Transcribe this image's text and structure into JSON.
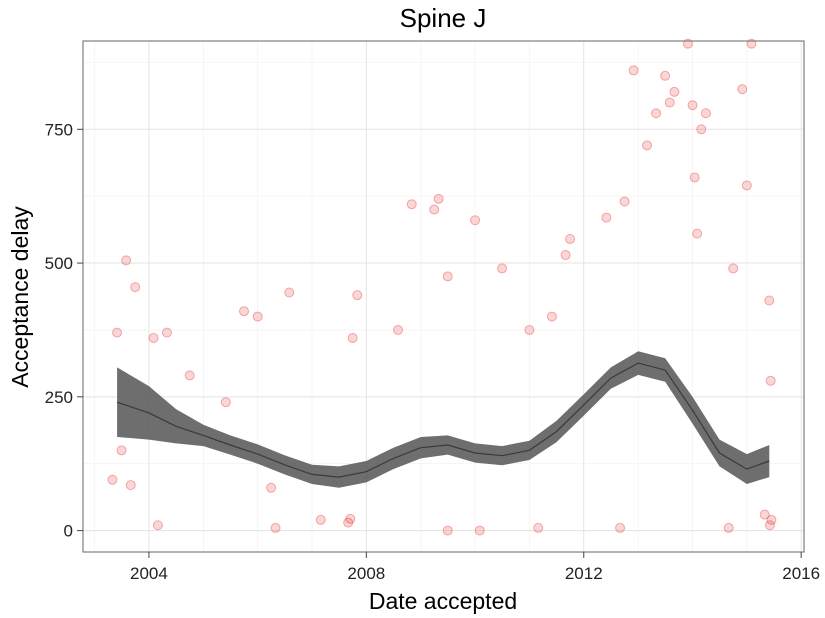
{
  "chart_data": {
    "type": "scatter",
    "title": "Spine J",
    "xlabel": "Date accepted",
    "ylabel": "Acceptance delay",
    "xlim": [
      "2002-10-15",
      "2016-01-20"
    ],
    "ylim": [
      -40,
      915
    ],
    "x_ticks": [
      "2004",
      "2008",
      "2012",
      "2016"
    ],
    "y_ticks": [
      0,
      250,
      500,
      750
    ],
    "grid": true,
    "point_color": "#E41A1C",
    "smooth_color": "#555555",
    "points": [
      {
        "x": "2003-06-01",
        "y": 370
      },
      {
        "x": "2003-08-01",
        "y": 505
      },
      {
        "x": "2003-10-01",
        "y": 455
      },
      {
        "x": "2003-05-01",
        "y": 95
      },
      {
        "x": "2003-09-01",
        "y": 85
      },
      {
        "x": "2004-03-01",
        "y": 10
      },
      {
        "x": "2004-05-01",
        "y": 370
      },
      {
        "x": "2004-02-01",
        "y": 360
      },
      {
        "x": "2003-07-01",
        "y": 150
      },
      {
        "x": "2004-10-01",
        "y": 290
      },
      {
        "x": "2005-06-01",
        "y": 240
      },
      {
        "x": "2005-10-01",
        "y": 410
      },
      {
        "x": "2006-01-01",
        "y": 400
      },
      {
        "x": "2006-08-01",
        "y": 445
      },
      {
        "x": "2006-04-01",
        "y": 80
      },
      {
        "x": "2006-05-01",
        "y": 5
      },
      {
        "x": "2007-03-01",
        "y": 20
      },
      {
        "x": "2007-09-01",
        "y": 15
      },
      {
        "x": "2007-09-15",
        "y": 22
      },
      {
        "x": "2007-10-01",
        "y": 360
      },
      {
        "x": "2007-11-01",
        "y": 440
      },
      {
        "x": "2008-08-01",
        "y": 375
      },
      {
        "x": "2008-11-01",
        "y": 610
      },
      {
        "x": "2009-05-01",
        "y": 620
      },
      {
        "x": "2009-04-01",
        "y": 600
      },
      {
        "x": "2009-07-01",
        "y": 475
      },
      {
        "x": "2010-01-01",
        "y": 580
      },
      {
        "x": "2010-07-01",
        "y": 490
      },
      {
        "x": "2011-01-01",
        "y": 375
      },
      {
        "x": "2011-06-01",
        "y": 400
      },
      {
        "x": "2011-09-01",
        "y": 515
      },
      {
        "x": "2011-10-01",
        "y": 545
      },
      {
        "x": "2012-06-01",
        "y": 585
      },
      {
        "x": "2012-10-01",
        "y": 615
      },
      {
        "x": "2012-12-01",
        "y": 860
      },
      {
        "x": "2013-03-01",
        "y": 720
      },
      {
        "x": "2013-05-01",
        "y": 780
      },
      {
        "x": "2013-07-01",
        "y": 850
      },
      {
        "x": "2013-08-01",
        "y": 800
      },
      {
        "x": "2013-09-01",
        "y": 820
      },
      {
        "x": "2013-12-01",
        "y": 910
      },
      {
        "x": "2014-01-01",
        "y": 795
      },
      {
        "x": "2014-02-01",
        "y": 555
      },
      {
        "x": "2014-01-15",
        "y": 660
      },
      {
        "x": "2014-04-01",
        "y": 780
      },
      {
        "x": "2014-03-01",
        "y": 750
      },
      {
        "x": "2014-12-01",
        "y": 825
      },
      {
        "x": "2015-02-01",
        "y": 910
      },
      {
        "x": "2015-01-01",
        "y": 645
      },
      {
        "x": "2014-10-01",
        "y": 490
      },
      {
        "x": "2015-06-01",
        "y": 430
      },
      {
        "x": "2015-06-10",
        "y": 280
      },
      {
        "x": "2015-06-15",
        "y": 20
      },
      {
        "x": "2015-06-05",
        "y": 10
      },
      {
        "x": "2015-05-01",
        "y": 30
      },
      {
        "x": "2014-09-01",
        "y": 5
      },
      {
        "x": "2012-09-01",
        "y": 5
      },
      {
        "x": "2009-07-01",
        "y": 0
      },
      {
        "x": "2010-02-01",
        "y": 0
      },
      {
        "x": "2011-03-01",
        "y": 5
      }
    ],
    "smooth": [
      {
        "x": "2003-06-01",
        "y": 240
      },
      {
        "x": "2004-01-01",
        "y": 220
      },
      {
        "x": "2004-07-01",
        "y": 195
      },
      {
        "x": "2005-01-01",
        "y": 178
      },
      {
        "x": "2005-07-01",
        "y": 160
      },
      {
        "x": "2006-01-01",
        "y": 143
      },
      {
        "x": "2006-07-01",
        "y": 123
      },
      {
        "x": "2007-01-01",
        "y": 105
      },
      {
        "x": "2007-07-01",
        "y": 100
      },
      {
        "x": "2008-01-01",
        "y": 110
      },
      {
        "x": "2008-07-01",
        "y": 135
      },
      {
        "x": "2009-01-01",
        "y": 155
      },
      {
        "x": "2009-07-01",
        "y": 160
      },
      {
        "x": "2010-01-01",
        "y": 145
      },
      {
        "x": "2010-07-01",
        "y": 140
      },
      {
        "x": "2011-01-01",
        "y": 150
      },
      {
        "x": "2011-07-01",
        "y": 185
      },
      {
        "x": "2012-01-01",
        "y": 235
      },
      {
        "x": "2012-07-01",
        "y": 285
      },
      {
        "x": "2013-01-01",
        "y": 313
      },
      {
        "x": "2013-07-01",
        "y": 300
      },
      {
        "x": "2014-01-01",
        "y": 225
      },
      {
        "x": "2014-07-01",
        "y": 145
      },
      {
        "x": "2015-01-01",
        "y": 115
      },
      {
        "x": "2015-06-01",
        "y": 130
      }
    ],
    "smooth_band": [
      65,
      50,
      32,
      20,
      18,
      18,
      18,
      18,
      20,
      20,
      20,
      20,
      18,
      18,
      18,
      18,
      20,
      20,
      20,
      22,
      22,
      25,
      25,
      28,
      30
    ]
  }
}
